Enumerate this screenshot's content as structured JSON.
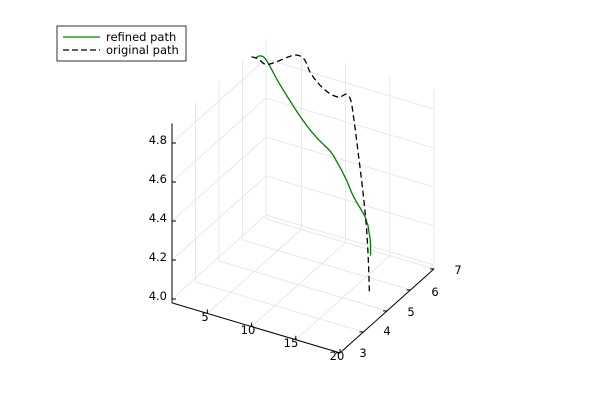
{
  "chart_data": {
    "type": "line",
    "projection": "3d",
    "grid": true,
    "legend_position": "top-left",
    "axes": {
      "x": {
        "range": [
          1,
          20
        ],
        "ticks": [
          5,
          10,
          15,
          20
        ],
        "tick_labels": [
          "5",
          "10",
          "15",
          "20"
        ]
      },
      "y": {
        "range": [
          3,
          7
        ],
        "ticks": [
          3,
          4,
          5,
          6,
          7
        ],
        "tick_labels": [
          "3",
          "4",
          "5",
          "6",
          "7"
        ]
      },
      "z": {
        "range": [
          3.98,
          4.9
        ],
        "ticks": [
          4.0,
          4.2,
          4.4,
          4.6,
          4.8
        ],
        "tick_labels": [
          "4.0",
          "4.2",
          "4.4",
          "4.6",
          "4.8"
        ]
      }
    },
    "series": [
      {
        "name": "refined path",
        "color": "#008000",
        "style": "solid",
        "points": [
          {
            "x": 1.4,
            "y": 6.43,
            "z": 4.874
          },
          {
            "x": 1.8,
            "y": 6.47,
            "z": 4.884
          },
          {
            "x": 2.3,
            "y": 6.52,
            "z": 4.864
          },
          {
            "x": 3.4,
            "y": 6.61,
            "z": 4.76
          },
          {
            "x": 4.5,
            "y": 6.71,
            "z": 4.663
          },
          {
            "x": 5.7,
            "y": 6.81,
            "z": 4.568
          },
          {
            "x": 6.9,
            "y": 6.92,
            "z": 4.487
          },
          {
            "x": 8.3,
            "y": 7.0,
            "z": 4.424
          },
          {
            "x": 9.2,
            "y": 6.88,
            "z": 4.407
          },
          {
            "x": 10.3,
            "y": 6.67,
            "z": 4.401
          },
          {
            "x": 11.9,
            "y": 6.33,
            "z": 4.396
          },
          {
            "x": 13.5,
            "y": 5.94,
            "z": 4.398
          },
          {
            "x": 15.1,
            "y": 5.55,
            "z": 4.412
          },
          {
            "x": 16.7,
            "y": 5.16,
            "z": 4.434
          },
          {
            "x": 18.2,
            "y": 4.77,
            "z": 4.455
          },
          {
            "x": 18.9,
            "y": 4.56,
            "z": 4.463
          },
          {
            "x": 19.3,
            "y": 4.45,
            "z": 4.47
          },
          {
            "x": 19.7,
            "y": 4.34,
            "z": 4.455
          },
          {
            "x": 20.0,
            "y": 4.29,
            "z": 4.418
          },
          {
            "x": 20.0,
            "y": 4.3,
            "z": 4.339
          }
        ]
      },
      {
        "name": "original path",
        "color": "#000000",
        "style": "dashed",
        "points": [
          {
            "x": 1.0,
            "y": 6.38,
            "z": 4.878
          },
          {
            "x": 1.6,
            "y": 6.44,
            "z": 4.869
          },
          {
            "x": 2.3,
            "y": 6.49,
            "z": 4.845
          },
          {
            "x": 3.0,
            "y": 6.62,
            "z": 4.85
          },
          {
            "x": 4.4,
            "y": 6.92,
            "z": 4.874
          },
          {
            "x": 5.3,
            "y": 7.0,
            "z": 4.858
          },
          {
            "x": 6.0,
            "y": 7.0,
            "z": 4.799
          },
          {
            "x": 7.0,
            "y": 7.0,
            "z": 4.752
          },
          {
            "x": 8.2,
            "y": 7.0,
            "z": 4.72
          },
          {
            "x": 9.4,
            "y": 6.94,
            "z": 4.724
          },
          {
            "x": 10.5,
            "y": 6.7,
            "z": 4.773
          },
          {
            "x": 11.7,
            "y": 6.4,
            "z": 4.828
          },
          {
            "x": 13.2,
            "y": 6.02,
            "z": 4.857
          },
          {
            "x": 15.0,
            "y": 5.49,
            "z": 4.826
          },
          {
            "x": 16.5,
            "y": 5.09,
            "z": 4.734
          },
          {
            "x": 18.0,
            "y": 4.73,
            "z": 4.591
          },
          {
            "x": 19.0,
            "y": 4.5,
            "z": 4.452
          },
          {
            "x": 19.6,
            "y": 4.36,
            "z": 4.294
          },
          {
            "x": 20.0,
            "y": 4.25,
            "z": 4.162
          }
        ]
      }
    ]
  }
}
